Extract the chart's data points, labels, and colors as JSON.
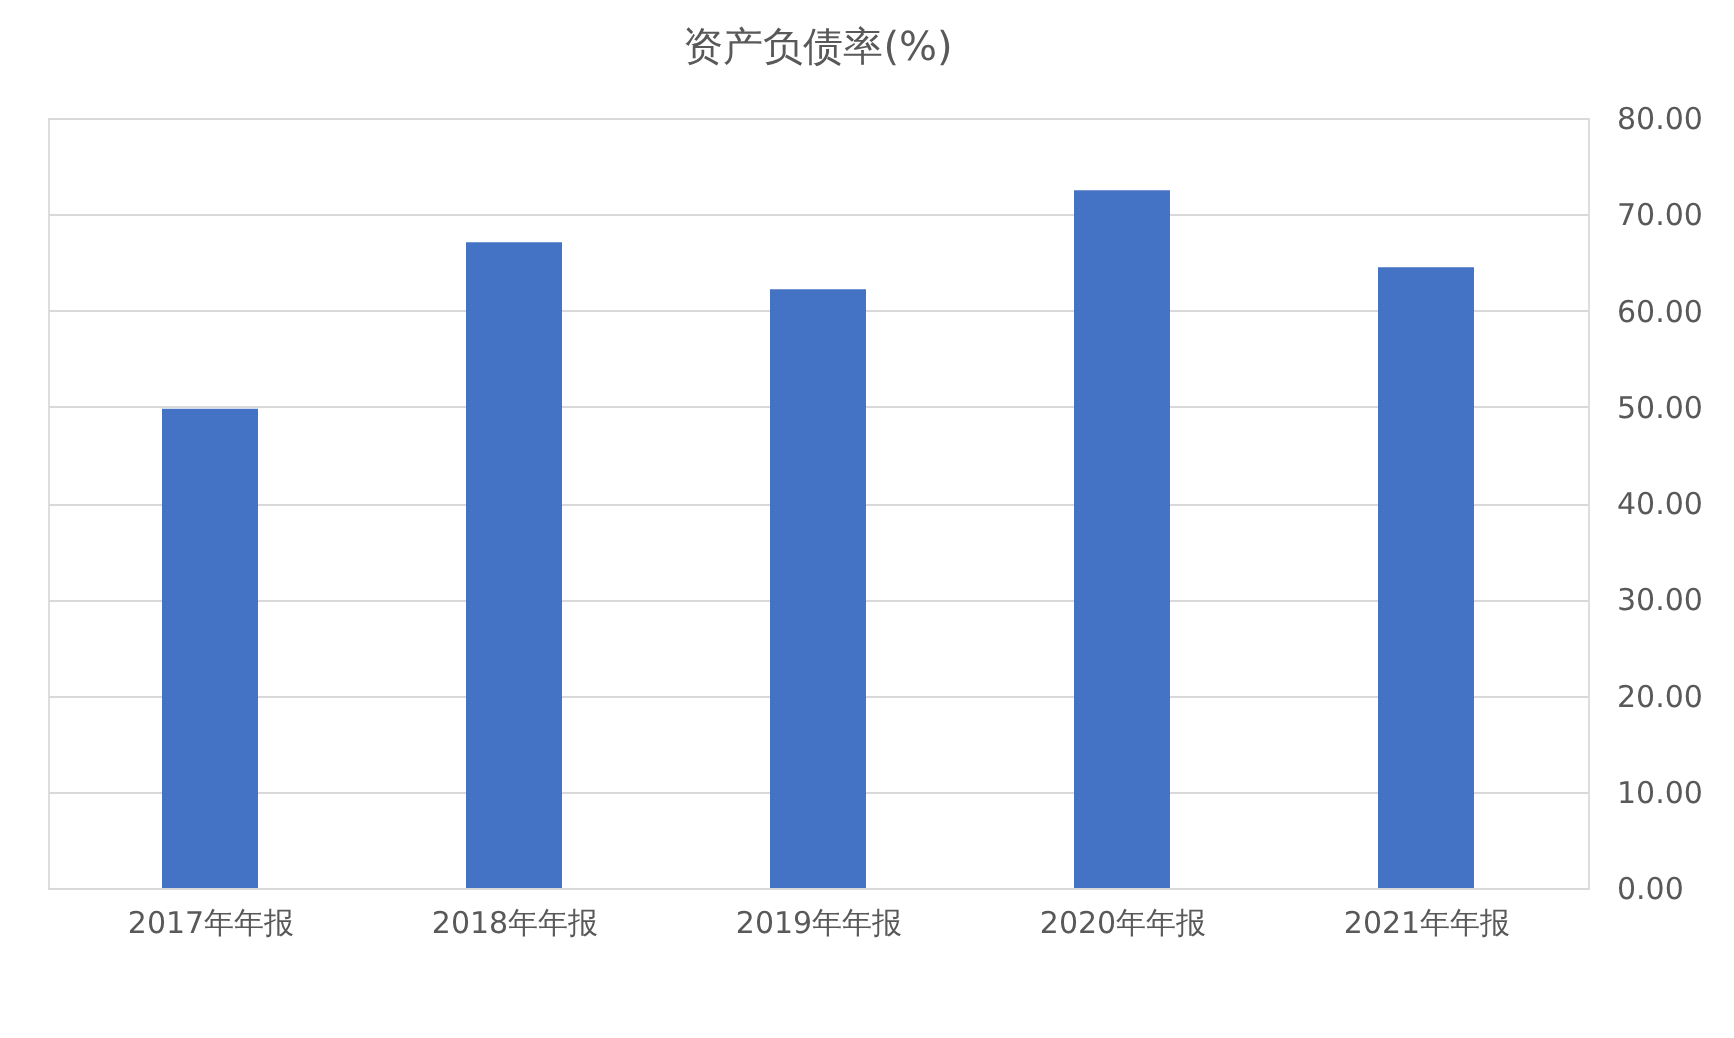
{
  "chart_data": {
    "type": "bar",
    "title": "资产负债率(%)",
    "categories": [
      "2017年年报",
      "2018年年报",
      "2019年年报",
      "2020年年报",
      "2021年年报"
    ],
    "values": [
      49.8,
      67.1,
      62.2,
      72.5,
      64.5
    ],
    "color": "#4472c4",
    "ylim": [
      0,
      80
    ],
    "yticks": [
      {
        "value": 0,
        "label": "0.00"
      },
      {
        "value": 10,
        "label": "10.00"
      },
      {
        "value": 20,
        "label": "20.00"
      },
      {
        "value": 30,
        "label": "30.00"
      },
      {
        "value": 40,
        "label": "40.00"
      },
      {
        "value": 50,
        "label": "50.00"
      },
      {
        "value": 60,
        "label": "60.00"
      },
      {
        "value": 70,
        "label": "70.00"
      },
      {
        "value": 80,
        "label": "80.00"
      }
    ],
    "grid": "y"
  }
}
